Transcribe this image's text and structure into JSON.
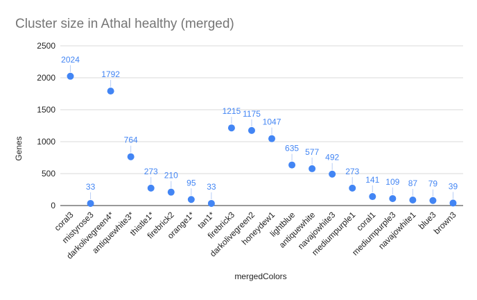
{
  "chart_data": {
    "type": "scatter",
    "title": "Cluster size in Athal healthy (merged)",
    "xlabel": "mergedColors",
    "ylabel": "Genes",
    "ylim": [
      0,
      2500
    ],
    "yticks": [
      0,
      500,
      1000,
      1500,
      2000,
      2500
    ],
    "grid": true,
    "legend": "none",
    "color": "#4285f4",
    "categories": [
      "coral3",
      "mistyrose3",
      "darkolivegreen4*",
      "antiquewhite3*",
      "thistle1*",
      "firebrick2",
      "orange1*",
      "tan1*",
      "firebrick3",
      "darkolivegreen2",
      "honeydew1",
      "lightblue",
      "antiquewhite",
      "navajowhite3",
      "mediumpurple1",
      "coral1",
      "mediumpurple3",
      "navajowhite1",
      "blue3",
      "brown3"
    ],
    "values": [
      2024,
      33,
      1792,
      764,
      273,
      210,
      95,
      33,
      1215,
      1175,
      1047,
      635,
      577,
      492,
      273,
      141,
      109,
      87,
      79,
      39
    ]
  }
}
